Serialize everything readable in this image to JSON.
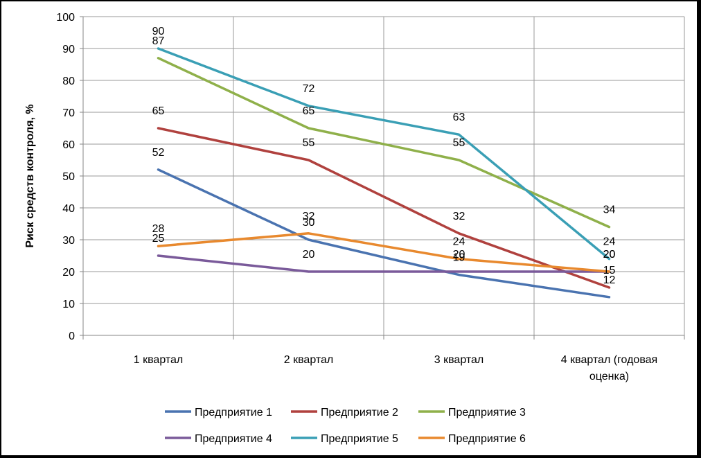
{
  "chart_data": {
    "type": "line",
    "title": "",
    "xlabel": "",
    "ylabel": "Риск средств контроля, %",
    "ylim": [
      0,
      100
    ],
    "ytick_step": 10,
    "grid": true,
    "legend_position": "bottom",
    "categories": [
      "1 квартал",
      "2 квартал",
      "3 квартал",
      "4 квартал (годовая оценка)"
    ],
    "series": [
      {
        "name": "Предприятие 1",
        "color": "#4a73b0",
        "values": [
          52,
          30,
          19,
          12
        ],
        "labels": [
          "52",
          "30",
          "19",
          "12"
        ]
      },
      {
        "name": "Предприятие 2",
        "color": "#b0413e",
        "values": [
          65,
          55,
          32,
          15
        ],
        "labels": [
          "65",
          "55",
          "32",
          "15"
        ]
      },
      {
        "name": "Предприятие 3",
        "color": "#8fb04a",
        "values": [
          87,
          65,
          55,
          34
        ],
        "labels": [
          "87",
          "65",
          "55",
          "34"
        ]
      },
      {
        "name": "Предприятие 4",
        "color": "#7a5a9a",
        "values": [
          25,
          20,
          20,
          20
        ],
        "labels": [
          "25",
          "20",
          "20",
          "20"
        ]
      },
      {
        "name": "Предприятие 5",
        "color": "#3a9fb5",
        "values": [
          90,
          72,
          63,
          24
        ],
        "labels": [
          "90",
          "72",
          "63",
          "24"
        ]
      },
      {
        "name": "Предприятие 6",
        "color": "#e8892e",
        "values": [
          28,
          32,
          24,
          20
        ],
        "labels": [
          "28",
          "32",
          "24",
          "20"
        ]
      }
    ]
  }
}
